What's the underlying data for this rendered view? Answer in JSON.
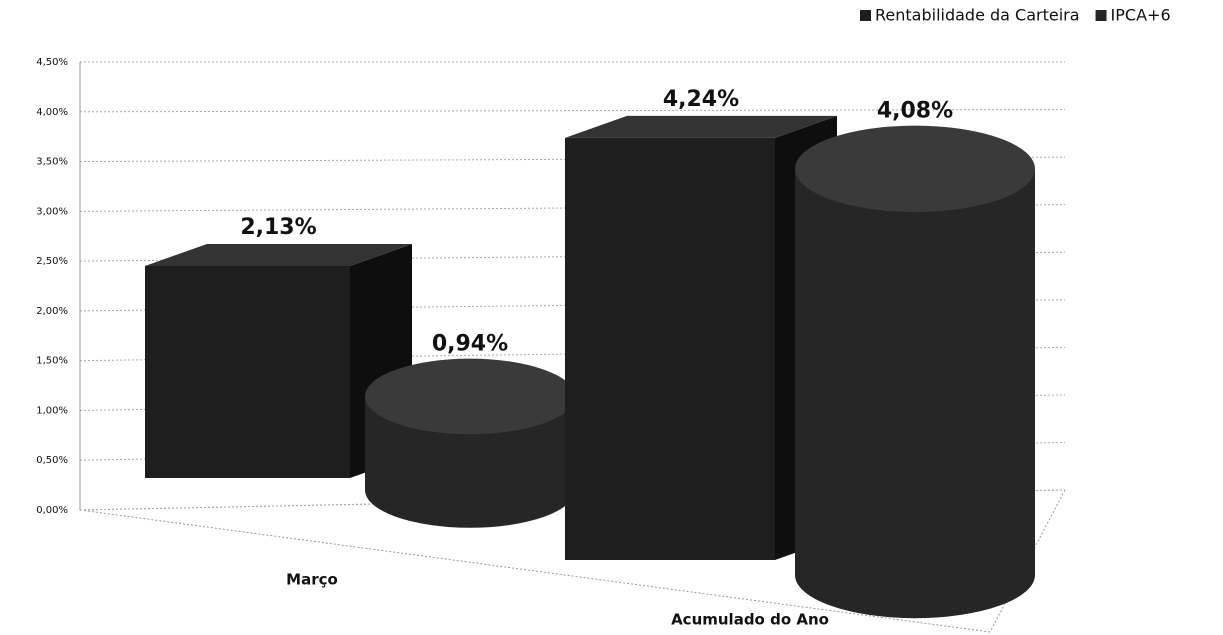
{
  "chart_data": {
    "type": "bar3d",
    "categories": [
      "Março",
      "Acumulado do Ano"
    ],
    "series": [
      {
        "name": "Rentabilidade da Carteira",
        "color": "#1e1e1e",
        "values": [
          2.13,
          4.24
        ],
        "value_labels": [
          "2,13%",
          "4,24%"
        ]
      },
      {
        "name": "IPCA+6",
        "color": "#262626",
        "values": [
          0.94,
          4.08
        ],
        "value_labels": [
          "0,94%",
          "4,08%"
        ]
      }
    ],
    "ylim": [
      0,
      4.5
    ],
    "yticks": [
      {
        "value": 0,
        "label": "0,00%"
      },
      {
        "value": 0.5,
        "label": "0,50%"
      },
      {
        "value": 1,
        "label": "1,00%"
      },
      {
        "value": 1.5,
        "label": "1,50%"
      },
      {
        "value": 2,
        "label": "2,00%"
      },
      {
        "value": 2.5,
        "label": "2,50%"
      },
      {
        "value": 3,
        "label": "3,00%"
      },
      {
        "value": 3.5,
        "label": "3,50%"
      },
      {
        "value": 4,
        "label": "4,00%"
      },
      {
        "value": 4.5,
        "label": "4,50%"
      }
    ],
    "grid": true,
    "legend": "top-right"
  }
}
